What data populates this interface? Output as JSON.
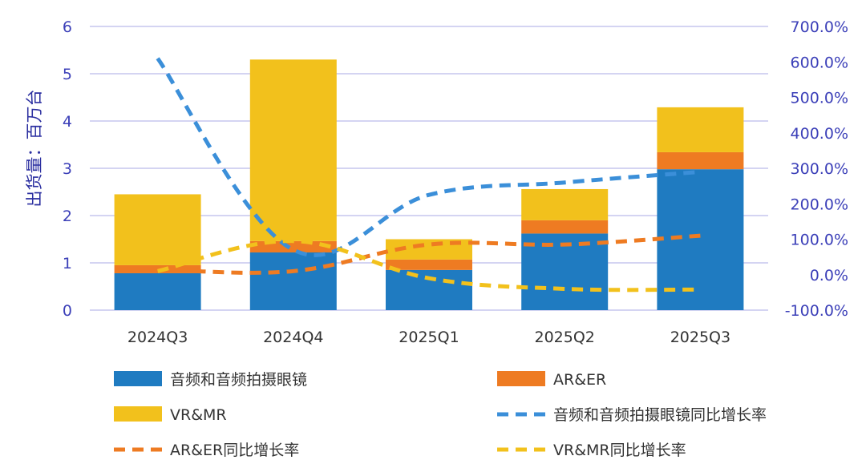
{
  "chart_data": {
    "type": "bar",
    "stacked": true,
    "categories": [
      "2024Q3",
      "2024Q4",
      "2025Q1",
      "2025Q2",
      "2025Q3"
    ],
    "ylabel": "出货量：百万台",
    "ylim": [
      0,
      6
    ],
    "yticks": [
      "0",
      "1",
      "2",
      "3",
      "4",
      "5",
      "6"
    ],
    "y2lim": [
      -100,
      700
    ],
    "y2ticks": [
      "-100.0%",
      "0.0%",
      "100.0%",
      "200.0%",
      "300.0%",
      "400.0%",
      "500.0%",
      "600.0%",
      "700.0%"
    ],
    "grid": true,
    "legend_position": "bottom",
    "bar_series": [
      {
        "name": "音频和音频拍摄眼镜",
        "color": "#1f7bc1",
        "values": [
          0.78,
          1.22,
          0.85,
          1.62,
          2.98
        ]
      },
      {
        "name": "AR&ER",
        "color": "#ee7b22",
        "values": [
          0.17,
          0.24,
          0.22,
          0.28,
          0.36
        ]
      },
      {
        "name": "VR&MR",
        "color": "#f2c11c",
        "values": [
          1.5,
          3.84,
          0.43,
          0.66,
          0.95
        ]
      }
    ],
    "line_series": [
      {
        "name": "音频和音频拍摄眼镜同比增长率",
        "color": "#3b8fd9",
        "axis": "right",
        "values": [
          610,
          70,
          225,
          260,
          290
        ]
      },
      {
        "name": "AR&ER同比增长率",
        "color": "#ee7b22",
        "axis": "right",
        "values": [
          15,
          10,
          85,
          85,
          110
        ]
      },
      {
        "name": "VR&MR同比增长率",
        "color": "#f2c11c",
        "axis": "right",
        "values": [
          10,
          95,
          -10,
          -40,
          -42
        ]
      }
    ]
  }
}
